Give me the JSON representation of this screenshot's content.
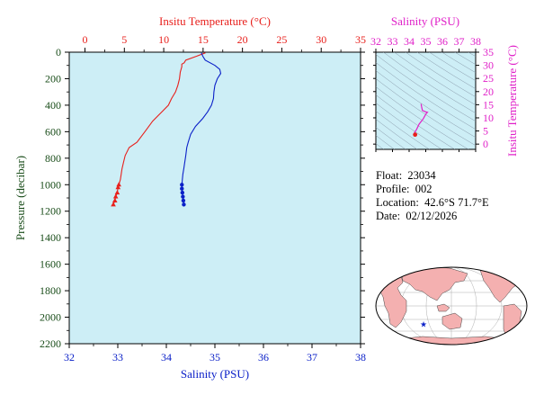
{
  "float_info": {
    "float_label": "Float:",
    "float_value": "23034",
    "profile_label": "Profile:",
    "profile_value": "002",
    "location_label": "Location:",
    "location_value": "42.6°S  71.7°E",
    "date_label": "Date:",
    "date_value": "02/12/2026"
  },
  "colors": {
    "temperature": "#e8201c",
    "salinity": "#0b20c8",
    "ts": "#e020c8",
    "plot_bg": "#cdeef6",
    "ylabel": "#1a4d1a",
    "land": "#f4b0b0",
    "ocean": "#ffffff",
    "marker": "#0b20c8"
  },
  "chart_data": [
    {
      "type": "line",
      "title": "",
      "ylabel": "Pressure (decibar)",
      "ylim": [
        2200,
        0
      ],
      "yticks": [
        0,
        200,
        400,
        600,
        800,
        1000,
        1200,
        1400,
        1600,
        1800,
        2000,
        2200
      ],
      "x_top": {
        "label": "Insitu Temperature (°C)",
        "lim": [
          -2,
          35
        ],
        "ticks": [
          0,
          5,
          10,
          15,
          20,
          25,
          30,
          35
        ]
      },
      "x_bottom": {
        "label": "Salinity (PSU)",
        "lim": [
          32,
          38
        ],
        "ticks": [
          32,
          33,
          34,
          35,
          36,
          37,
          38
        ]
      },
      "series": [
        {
          "name": "",
          "axis": "top",
          "x": [
            15.3,
            14.2,
            12.8,
            12.6,
            12.3,
            12.3,
            12.1,
            12.0,
            11.8,
            11.5,
            11.0,
            10.6,
            9.6,
            8.6,
            7.6,
            6.6,
            5.6,
            5.1,
            4.9,
            4.7,
            4.6,
            4.5,
            4.3,
            4.2,
            4.1,
            3.9,
            3.8,
            3.6
          ],
          "y": [
            5,
            30,
            60,
            80,
            90,
            110,
            150,
            200,
            250,
            300,
            350,
            400,
            460,
            520,
            600,
            680,
            720,
            780,
            830,
            880,
            920,
            960,
            1000,
            1020,
            1060,
            1090,
            1120,
            1150
          ],
          "markers_from_index": 22
        },
        {
          "name": "",
          "axis": "bottom",
          "x": [
            34.72,
            34.75,
            34.8,
            35.0,
            35.1,
            35.12,
            35.05,
            35.0,
            34.98,
            34.97,
            34.93,
            34.85,
            34.75,
            34.6,
            34.5,
            34.45,
            34.42,
            34.4,
            34.38,
            34.36,
            34.34,
            34.33,
            34.32,
            34.32,
            34.33,
            34.34,
            34.35,
            34.36
          ],
          "y": [
            5,
            30,
            60,
            100,
            130,
            160,
            200,
            250,
            300,
            350,
            400,
            450,
            500,
            560,
            620,
            680,
            720,
            780,
            830,
            880,
            920,
            960,
            1000,
            1030,
            1060,
            1090,
            1120,
            1150
          ],
          "markers_from_index": 22
        }
      ]
    },
    {
      "type": "scatter",
      "title": "",
      "xlabel": "Salinity (PSU)",
      "ylabel": "Insitu Temperature (°C)",
      "xlim": [
        32,
        38
      ],
      "ylim": [
        -2,
        35
      ],
      "xticks": [
        32,
        33,
        34,
        35,
        36,
        37,
        38
      ],
      "yticks": [
        0,
        5,
        10,
        15,
        20,
        25,
        30,
        35
      ],
      "series": [
        {
          "name": "",
          "x": [
            34.72,
            34.75,
            34.8,
            35.0,
            35.1,
            35.05,
            34.97,
            34.85,
            34.6,
            34.45,
            34.38,
            34.33,
            34.32,
            34.34,
            34.36
          ],
          "y": [
            15.3,
            14.2,
            12.8,
            12.3,
            12.1,
            11.8,
            11.0,
            9.6,
            7.6,
            5.6,
            4.9,
            4.5,
            4.2,
            3.9,
            3.6
          ]
        }
      ]
    }
  ],
  "map": {
    "marker_lat": -42.6,
    "marker_lon": 71.7
  }
}
